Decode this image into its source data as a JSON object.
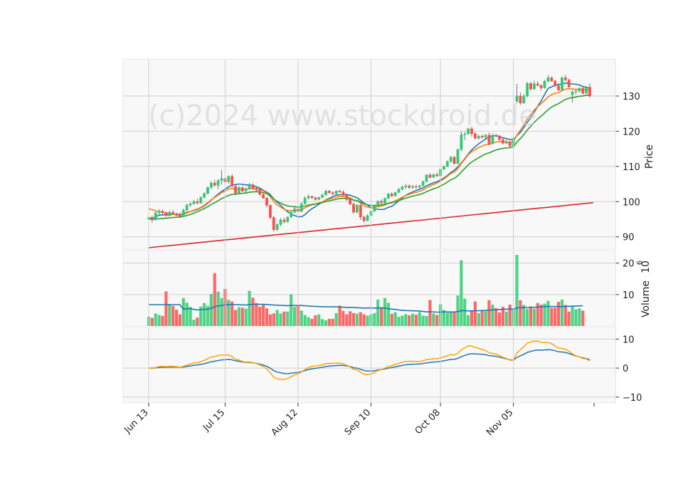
{
  "chart_data": {
    "type": "candlestick",
    "watermark": "(c)2024 www.stockdroid.de",
    "x_tick_labels": [
      "Jun 13",
      "Jul 15",
      "Aug 12",
      "Sep 10",
      "Oct 08",
      "Nov 05"
    ],
    "x_tick_index": [
      0,
      22,
      43,
      64,
      84,
      105
    ],
    "price_panel": {
      "ylabel": "Price",
      "yticks": [
        90,
        100,
        110,
        120,
        130
      ],
      "ylim": [
        86.5,
        140.5
      ],
      "ohlc": [
        [
          95.0,
          96.3,
          94.5,
          95.5
        ],
        [
          95.5,
          96.0,
          94.0,
          94.8
        ],
        [
          94.8,
          97.2,
          94.6,
          96.8
        ],
        [
          96.8,
          97.8,
          96.2,
          97.3
        ],
        [
          97.3,
          97.8,
          96.4,
          96.9
        ],
        [
          96.9,
          97.2,
          95.7,
          96.0
        ],
        [
          96.0,
          97.5,
          95.8,
          97.0
        ],
        [
          97.0,
          97.6,
          96.5,
          96.6
        ],
        [
          96.6,
          96.9,
          95.8,
          96.3
        ],
        [
          96.3,
          97.0,
          95.4,
          95.8
        ],
        [
          95.8,
          98.0,
          95.6,
          97.6
        ],
        [
          97.6,
          99.4,
          97.3,
          99.0
        ],
        [
          99.0,
          99.8,
          98.5,
          99.4
        ],
        [
          99.4,
          100.5,
          99.1,
          100.0
        ],
        [
          100.0,
          100.8,
          99.2,
          99.6
        ],
        [
          99.6,
          101.5,
          99.4,
          101.2
        ],
        [
          101.2,
          102.7,
          100.9,
          102.3
        ],
        [
          102.3,
          104.3,
          102.0,
          104.0
        ],
        [
          104.0,
          105.8,
          103.6,
          105.3
        ],
        [
          105.3,
          106.2,
          104.3,
          104.6
        ],
        [
          104.6,
          106.4,
          103.5,
          106.0
        ],
        [
          106.0,
          109.0,
          104.8,
          106.6
        ],
        [
          106.6,
          107.2,
          105.3,
          105.6
        ],
        [
          105.6,
          107.5,
          105.2,
          107.2
        ],
        [
          107.2,
          107.8,
          104.0,
          104.4
        ],
        [
          104.4,
          104.6,
          102.0,
          102.4
        ],
        [
          102.4,
          104.4,
          102.2,
          104.0
        ],
        [
          104.0,
          104.4,
          102.7,
          103.0
        ],
        [
          103.0,
          104.0,
          102.3,
          103.6
        ],
        [
          103.6,
          105.3,
          103.4,
          104.8
        ],
        [
          104.8,
          105.2,
          103.4,
          103.8
        ],
        [
          103.8,
          104.2,
          102.9,
          103.3
        ],
        [
          103.3,
          103.7,
          101.8,
          102.0
        ],
        [
          102.0,
          102.5,
          100.8,
          101.0
        ],
        [
          101.0,
          101.4,
          98.3,
          99.0
        ],
        [
          99.0,
          99.2,
          95.0,
          95.5
        ],
        [
          95.5,
          96.0,
          91.5,
          92.0
        ],
        [
          92.0,
          93.8,
          91.7,
          93.5
        ],
        [
          93.5,
          95.3,
          93.0,
          94.8
        ],
        [
          94.8,
          95.4,
          93.8,
          94.3
        ],
        [
          94.3,
          95.8,
          94.0,
          95.6
        ],
        [
          95.6,
          97.4,
          95.4,
          97.0
        ],
        [
          97.0,
          98.7,
          96.7,
          98.0
        ],
        [
          98.0,
          99.5,
          96.8,
          97.2
        ],
        [
          97.2,
          99.8,
          97.0,
          99.4
        ],
        [
          99.4,
          101.5,
          99.2,
          101.0
        ],
        [
          101.0,
          102.0,
          100.6,
          101.5
        ],
        [
          101.5,
          101.7,
          100.8,
          101.1
        ],
        [
          101.1,
          101.5,
          100.3,
          100.6
        ],
        [
          100.6,
          101.4,
          100.4,
          101.2
        ],
        [
          101.2,
          102.2,
          101.0,
          101.9
        ],
        [
          101.9,
          103.4,
          101.6,
          103.0
        ],
        [
          103.0,
          103.3,
          102.2,
          102.5
        ],
        [
          102.5,
          102.9,
          101.9,
          102.2
        ],
        [
          102.2,
          103.2,
          101.8,
          103.0
        ],
        [
          103.0,
          103.3,
          102.5,
          102.7
        ],
        [
          102.7,
          103.2,
          101.6,
          101.9
        ],
        [
          101.9,
          102.3,
          100.2,
          100.6
        ],
        [
          100.6,
          101.0,
          99.0,
          99.3
        ],
        [
          99.3,
          99.7,
          96.5,
          97.0
        ],
        [
          97.0,
          99.3,
          96.7,
          99.0
        ],
        [
          99.0,
          99.4,
          94.8,
          95.6
        ],
        [
          95.6,
          96.0,
          94.0,
          94.6
        ],
        [
          94.6,
          96.4,
          94.4,
          96.0
        ],
        [
          96.0,
          97.5,
          95.8,
          97.3
        ],
        [
          97.3,
          99.0,
          97.1,
          98.7
        ],
        [
          98.7,
          100.4,
          98.5,
          100.1
        ],
        [
          100.1,
          100.6,
          99.3,
          99.6
        ],
        [
          99.6,
          101.2,
          99.4,
          100.9
        ],
        [
          100.9,
          102.5,
          100.7,
          102.2
        ],
        [
          102.2,
          102.7,
          101.3,
          101.6
        ],
        [
          101.6,
          102.8,
          101.4,
          102.6
        ],
        [
          102.6,
          103.9,
          102.4,
          103.5
        ],
        [
          103.5,
          104.6,
          103.2,
          104.2
        ],
        [
          104.2,
          105.0,
          103.6,
          104.5
        ],
        [
          104.5,
          104.9,
          103.6,
          104.0
        ],
        [
          104.0,
          104.7,
          103.6,
          104.3
        ],
        [
          104.3,
          104.8,
          103.7,
          104.1
        ],
        [
          104.1,
          104.8,
          103.7,
          104.5
        ],
        [
          104.5,
          106.0,
          104.3,
          105.7
        ],
        [
          105.7,
          107.8,
          105.5,
          107.6
        ],
        [
          107.6,
          108.1,
          106.6,
          106.9
        ],
        [
          106.9,
          108.0,
          106.7,
          107.7
        ],
        [
          107.7,
          108.3,
          107.0,
          107.3
        ],
        [
          107.3,
          109.5,
          107.1,
          109.2
        ],
        [
          109.2,
          110.3,
          108.9,
          110.0
        ],
        [
          110.0,
          111.7,
          109.8,
          111.4
        ],
        [
          111.4,
          113.0,
          111.1,
          112.6
        ],
        [
          112.6,
          113.0,
          110.5,
          110.8
        ],
        [
          110.8,
          115.0,
          110.6,
          114.8
        ],
        [
          114.8,
          120.0,
          114.3,
          119.0
        ],
        [
          119.0,
          119.8,
          117.5,
          119.2
        ],
        [
          119.2,
          121.0,
          119.0,
          120.7
        ],
        [
          120.7,
          121.3,
          118.5,
          119.3
        ],
        [
          119.3,
          119.7,
          117.6,
          118.0
        ],
        [
          118.0,
          119.0,
          117.6,
          118.6
        ],
        [
          118.6,
          119.0,
          117.9,
          118.3
        ],
        [
          118.3,
          119.2,
          118.0,
          118.9
        ],
        [
          118.9,
          119.6,
          116.0,
          116.5
        ],
        [
          116.5,
          119.3,
          116.2,
          118.8
        ],
        [
          118.8,
          119.3,
          118.3,
          118.6
        ],
        [
          118.6,
          118.9,
          117.3,
          117.6
        ],
        [
          117.6,
          118.0,
          116.2,
          116.6
        ],
        [
          116.6,
          117.5,
          116.3,
          117.0
        ],
        [
          117.0,
          117.3,
          115.5,
          115.8
        ],
        [
          115.8,
          118.3,
          115.6,
          118.0
        ],
        [
          128.5,
          133.5,
          128.0,
          130.0
        ],
        [
          130.0,
          131.0,
          127.5,
          128.0
        ],
        [
          128.0,
          130.5,
          127.8,
          130.0
        ],
        [
          130.0,
          134.0,
          129.6,
          133.6
        ],
        [
          133.6,
          134.0,
          131.5,
          132.0
        ],
        [
          132.0,
          134.4,
          131.8,
          133.5
        ],
        [
          133.5,
          134.2,
          132.8,
          133.0
        ],
        [
          133.0,
          133.4,
          131.6,
          132.3
        ],
        [
          132.3,
          134.6,
          132.1,
          134.2
        ],
        [
          134.2,
          136.0,
          133.9,
          135.2
        ],
        [
          135.2,
          135.6,
          134.0,
          134.3
        ],
        [
          134.3,
          134.6,
          132.5,
          132.9
        ],
        [
          132.9,
          133.5,
          131.3,
          131.7
        ],
        [
          131.7,
          135.6,
          131.5,
          135.2
        ],
        [
          135.2,
          136.0,
          134.2,
          134.6
        ],
        [
          134.6,
          134.9,
          132.2,
          132.6
        ],
        [
          130.4,
          131.6,
          128.2,
          131.2
        ],
        [
          131.2,
          131.9,
          130.5,
          131.4
        ],
        [
          131.4,
          132.5,
          131.1,
          132.2
        ],
        [
          132.2,
          132.6,
          130.4,
          130.8
        ],
        [
          130.8,
          132.8,
          130.6,
          132.5
        ],
        [
          132.5,
          133.6,
          129.6,
          130.0
        ]
      ],
      "sma_periods": [
        10,
        20,
        50,
        200
      ],
      "sma_colors": [
        "#1f77b4",
        "#ff7f0e",
        "#2ca02c",
        "#d62728"
      ],
      "sma_200": [
        86.9,
        87.0,
        87.1,
        87.2,
        87.3,
        87.4,
        87.5,
        87.6,
        87.7,
        87.8,
        87.9,
        88.0,
        88.1,
        88.2,
        88.3,
        88.4,
        88.5,
        88.6,
        88.7,
        88.8,
        88.9,
        89.0,
        89.1,
        89.2,
        89.3,
        89.4,
        89.5,
        89.6,
        89.7,
        89.8,
        89.9,
        90.0,
        90.1,
        90.2,
        90.3,
        90.4,
        90.5,
        90.6,
        90.7,
        90.8,
        90.9,
        91.0,
        91.1,
        91.2,
        91.3,
        91.4,
        91.5,
        91.6,
        91.7,
        91.8,
        91.9,
        92.0,
        92.1,
        92.2,
        92.3,
        92.4,
        92.5,
        92.6,
        92.7,
        92.8,
        92.9,
        93.0,
        93.1,
        93.2,
        93.3,
        93.4,
        93.5,
        93.6,
        93.7,
        93.8,
        93.9,
        94.0,
        94.1,
        94.2,
        94.3,
        94.4,
        94.5,
        94.6,
        94.7,
        94.8,
        94.9,
        95.0,
        95.1,
        95.2,
        95.3,
        95.4,
        95.5,
        95.6,
        95.7,
        95.8,
        95.9,
        96.0,
        96.1,
        96.2,
        96.3,
        96.4,
        96.5,
        96.6,
        96.7,
        96.8,
        96.9,
        97.0,
        97.1,
        97.2,
        97.3,
        97.4,
        97.5,
        97.6,
        97.7,
        97.8,
        97.9,
        98.0,
        98.1,
        98.2,
        98.3,
        98.4,
        98.5,
        98.6,
        98.7,
        98.8,
        98.9,
        99.0,
        99.1,
        99.2,
        99.3,
        99.4,
        99.5,
        99.6,
        99.7
      ]
    },
    "volume_panel": {
      "ylabel": "Volume",
      "exponent_label": "10",
      "exponent_power": "6",
      "yticks": [
        10,
        20
      ],
      "ylim": [
        0,
        24
      ],
      "values": [
        3.0,
        2.6,
        4.0,
        3.5,
        3.2,
        11.0,
        7.0,
        6.4,
        5.2,
        3.7,
        8.9,
        7.4,
        6.1,
        2.0,
        2.7,
        6.2,
        7.3,
        6.4,
        10.2,
        16.8,
        10.9,
        8.9,
        11.8,
        8.3,
        7.8,
        5.1,
        6.0,
        5.8,
        5.5,
        11.2,
        9.0,
        7.3,
        6.1,
        6.7,
        5.6,
        3.7,
        4.0,
        5.1,
        4.0,
        4.6,
        4.6,
        10.1,
        6.1,
        6.4,
        4.9,
        3.5,
        2.8,
        2.3,
        3.4,
        3.7,
        2.2,
        1.8,
        2.3,
        2.3,
        4.1,
        6.5,
        4.8,
        3.7,
        4.7,
        4.1,
        3.9,
        4.4,
        3.7,
        3.3,
        3.7,
        4.1,
        8.4,
        6.0,
        8.9,
        7.4,
        3.9,
        4.4,
        2.9,
        3.3,
        3.8,
        3.4,
        3.9,
        3.6,
        4.4,
        3.3,
        3.2,
        8.3,
        4.0,
        3.5,
        6.9,
        5.1,
        4.2,
        4.4,
        4.6,
        9.7,
        20.9,
        8.7,
        3.4,
        4.8,
        7.8,
        4.1,
        4.9,
        4.7,
        8.2,
        6.8,
        5.7,
        4.3,
        6.1,
        4.6,
        6.8,
        5.5,
        22.6,
        8.2,
        6.7,
        5.4,
        6.2,
        5.5,
        7.3,
        6.8,
        7.1,
        8.0,
        5.8,
        5.8,
        7.7,
        8.4,
        6.7,
        4.6,
        6.3,
        5.3,
        5.6,
        4.9
      ],
      "up_color": "#2ecc71",
      "down_color": "#ff4d4d",
      "avg_line_color": "#1f77b4"
    },
    "oscillator_panel": {
      "yticks": [
        -10,
        0,
        10
      ],
      "ylim": [
        -12,
        14
      ],
      "series_colors": [
        "#1f77b4",
        "#ffa500"
      ]
    }
  }
}
